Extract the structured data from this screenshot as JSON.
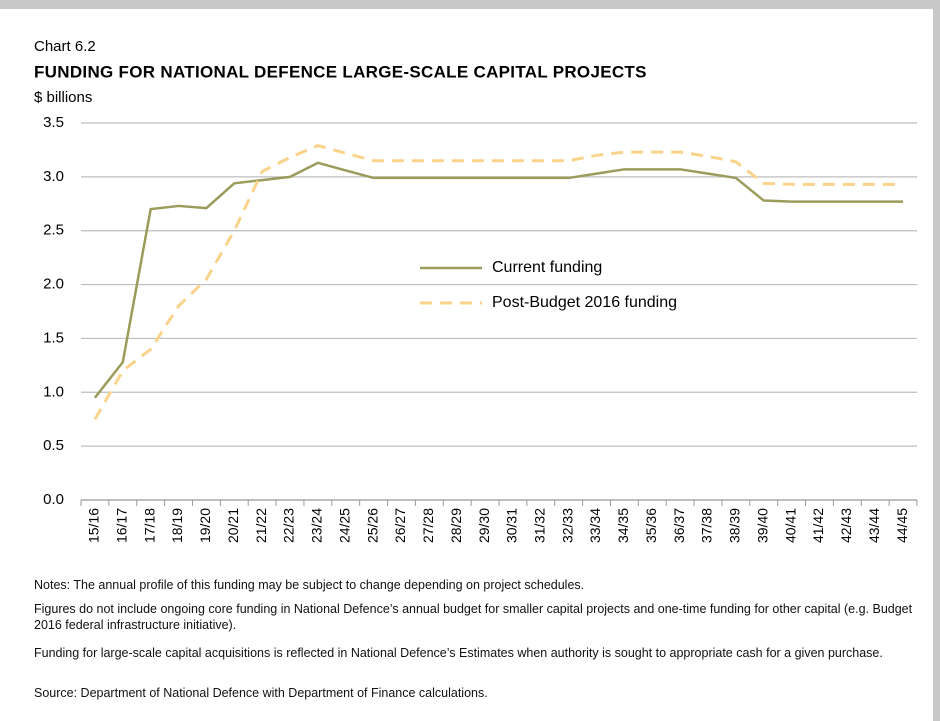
{
  "chart_data": {
    "type": "line",
    "chart_label": "Chart 6.2",
    "title": "FUNDING FOR NATIONAL DEFENCE LARGE-SCALE CAPITAL PROJECTS",
    "y_label": "$ billions",
    "categories": [
      "15/16",
      "16/17",
      "17/18",
      "18/19",
      "19/20",
      "20/21",
      "21/22",
      "22/23",
      "23/24",
      "24/25",
      "25/26",
      "26/27",
      "27/28",
      "28/29",
      "29/30",
      "30/31",
      "31/32",
      "32/33",
      "33/34",
      "34/35",
      "35/36",
      "36/37",
      "37/38",
      "38/39",
      "39/40",
      "40/41",
      "41/42",
      "42/43",
      "43/44",
      "44/45"
    ],
    "series": [
      {
        "name": "Current funding",
        "color": "#9b9b5c",
        "dashed": false,
        "values": [
          0.95,
          1.28,
          2.7,
          2.73,
          2.71,
          2.94,
          2.97,
          3.0,
          3.13,
          3.06,
          2.99,
          2.99,
          2.99,
          2.99,
          2.99,
          2.99,
          2.99,
          2.99,
          3.03,
          3.07,
          3.07,
          3.07,
          3.03,
          2.99,
          2.78,
          2.77,
          2.77,
          2.77,
          2.77,
          2.77
        ]
      },
      {
        "name": "Post-Budget 2016 funding",
        "color": "#f9d38a",
        "dashed": true,
        "values": [
          0.75,
          1.2,
          1.4,
          1.8,
          2.05,
          2.5,
          3.05,
          3.18,
          3.29,
          3.22,
          3.15,
          3.15,
          3.15,
          3.15,
          3.15,
          3.15,
          3.15,
          3.15,
          3.2,
          3.23,
          3.23,
          3.23,
          3.19,
          3.14,
          2.94,
          2.93,
          2.93,
          2.93,
          2.93,
          2.93
        ]
      }
    ],
    "ylim": [
      0,
      3.5
    ],
    "yticks": [
      {
        "value": 0,
        "label": "0.0"
      },
      0.5,
      {
        "value": 1,
        "label": "1.0"
      },
      1.5,
      {
        "value": 2,
        "label": "2.0"
      },
      2.5,
      {
        "value": 3,
        "label": "3.0"
      },
      3.5
    ],
    "grid": true,
    "legend": "center",
    "notes": [
      "Notes: The annual profile of this funding may be subject to change depending on project schedules.",
      "Figures do not include ongoing core funding in National Defence’s annual budget for smaller capital projects and one-time funding for other capital (e.g. Budget 2016 federal infrastructure initiative).",
      "Funding for large-scale capital acquisitions is reflected in National Defence’s Estimates when authority is sought to appropriate cash for a given purchase.",
      "Source: Department of National Defence with Department of Finance calculations."
    ]
  }
}
